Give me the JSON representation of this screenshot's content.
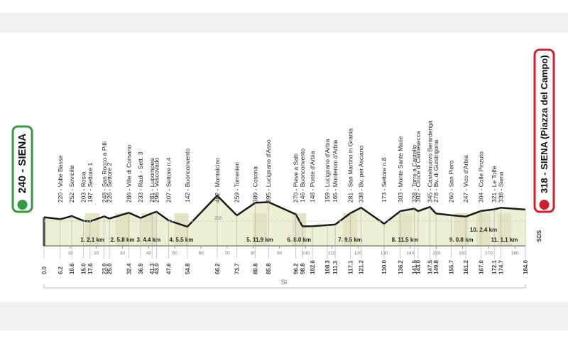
{
  "chart_data": {
    "type": "profile",
    "x": [
      {
        "value": 0,
        "label": "0.0"
      },
      6.2,
      10.6,
      {
        "value": 15,
        "label": "15.0"
      },
      17.6,
      {
        "value": 23,
        "label": "23.0"
      },
      {
        "value": 25,
        "label": "25.0"
      },
      32.4,
      36.9,
      41.3,
      {
        "value": 43,
        "label": "43.0"
      },
      47.6,
      54.8,
      66.2,
      73.7,
      80.8,
      85.8,
      96.2,
      98.8,
      102.6,
      108.3,
      111.3,
      117.1,
      121.2,
      {
        "value": 130,
        "label": "130.0"
      },
      136.2,
      141.5,
      {
        "value": 143,
        "label": "143.0"
      },
      147.5,
      149.8,
      155.7,
      161.2,
      {
        "value": 167,
        "label": "167.0"
      },
      172.1,
      174.7,
      {
        "value": 184,
        "label": "184.0"
      }
    ],
    "values": [
      240,
      220,
      252,
      203,
      197,
      248,
      226,
      286,
      233,
      281,
      296,
      207,
      142,
      462,
      259,
      389,
      395,
      270,
      146,
      148,
      159,
      165,
      281,
      338,
      173,
      303,
      328,
      302,
      345,
      278,
      260,
      247,
      304,
      321,
      338,
      318
    ],
    "value_labels": [
      "240 - SIENA",
      "220 - Volte Basse",
      "252 - Sovicille",
      "203 - Rosia",
      "197 - Settore 1",
      "248 - San Rocco a Pilli",
      "226 - Settore 2",
      "286 - Ville di Corsano",
      "233 - Radi - Sett. 3",
      "281 - Lupompesi",
      "296 - Vescovado",
      "207 - Settore n.4",
      "142 - Buonconvento",
      "462 - Montalcino",
      "259 - Torrenieri",
      "389 - Cosona",
      "395 - Lucignano d'Asso",
      "270 - Pieve a Salti",
      "146 - Buonconvento",
      "148 - Ponte d'Arbia",
      "159 - Lucignano d'Arbia",
      "165 - Monteroni d'Arbia",
      "281 - San Martino in Grania",
      "338 - Bv. per Asciano",
      "173 - Settore n.8",
      "303 - Monte Sante Marie",
      "328 - Torre a Castello",
      "302 - Croce di Camesecca",
      "345 - Castelnuovo Berardenga",
      "278 - Bv. di Guistrigona",
      "260 - San Piero",
      "247 - Vico d'Arbia",
      "304 - Colle Pinzuto",
      "321 - Le Tolfe",
      "338 - Siena",
      "318 - SIENA (Piazza del Campo)"
    ],
    "color": "#1a1a1a",
    "xlim": [
      0,
      184
    ],
    "xticks": [
      10,
      20,
      30,
      40,
      50,
      60,
      70,
      80,
      90,
      100,
      110,
      120,
      130,
      140,
      150,
      160,
      170,
      180
    ],
    "ylim": [
      0,
      500
    ],
    "yticks": [
      200
    ],
    "sectors": [
      "1. 2.1 km",
      "2. 5.8 km",
      "3. 4.4 km",
      "4. 5.5 km",
      "5. 11.9 km",
      "6. 8.0 km",
      "7. 9.5 km",
      "8. 11.5 km",
      "9. 0.8 km",
      "10. 2.4 km",
      "11. 1.1 km"
    ],
    "region": "SI",
    "end_note": "SDS"
  }
}
